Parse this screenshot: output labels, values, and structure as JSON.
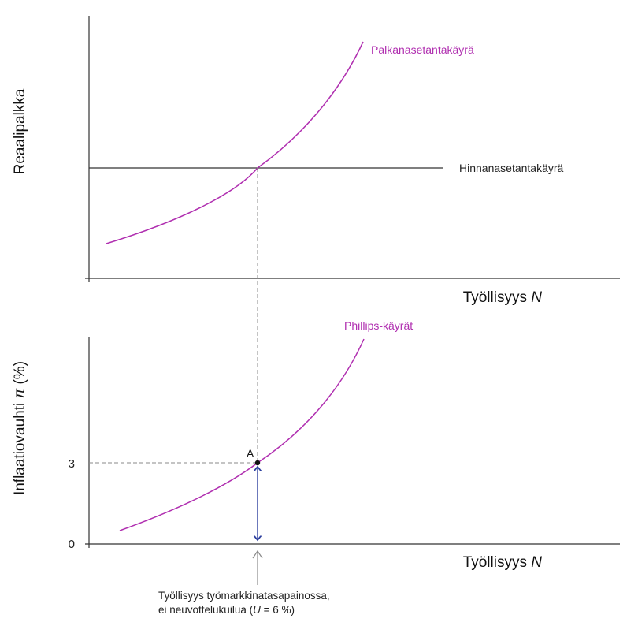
{
  "top_panel": {
    "y_axis_title": "Reaalipalkka",
    "x_axis_title": "Työllisyys",
    "x_axis_symbol": "N",
    "wage_curve_label": "Palkanasetantakäyrä",
    "price_curve_label": "Hinnanasetantakäyrä"
  },
  "bottom_panel": {
    "y_axis_title": "Inflaatiovauhti",
    "y_axis_symbol": "π",
    "y_axis_unit": "(%)",
    "x_axis_title": "Työllisyys",
    "x_axis_symbol": "N",
    "phillips_label": "Phillips-käyrät",
    "tick_3": "3",
    "tick_0": "0",
    "point_label": "A"
  },
  "annotation": {
    "line1": "Työllisyys työmarkkinatasapainossa,",
    "line2_prefix": "ei neuvottelukuilua (",
    "line2_var": "U",
    "line2_suffix": " = 6 %)"
  },
  "colors": {
    "curve": "#b02fb0",
    "axis": "#333333",
    "dashed": "#8a8a8a",
    "arrow_blue": "#2c3f9e"
  }
}
